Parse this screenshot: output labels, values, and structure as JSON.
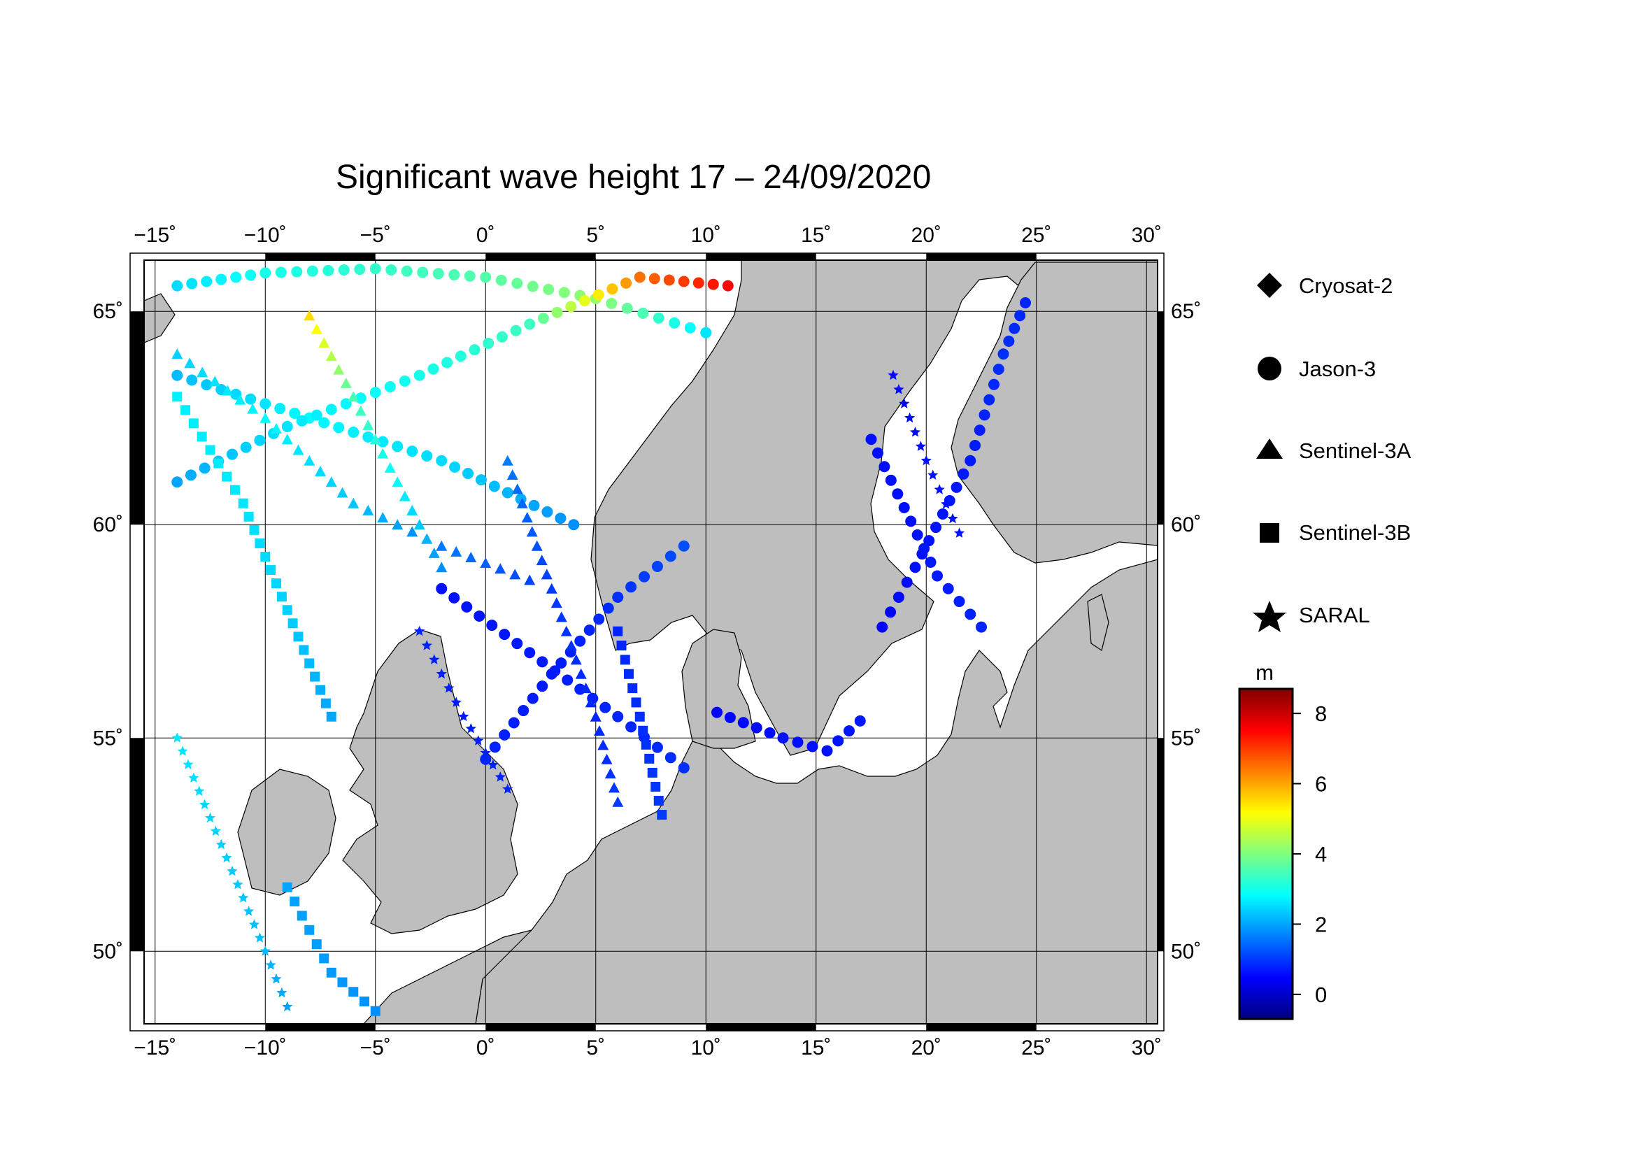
{
  "title": "Significant wave height 17 – 24/09/2020",
  "map": {
    "lon_range": [
      -15.5,
      30.5
    ],
    "lat_range": [
      48.3,
      66.2
    ],
    "lon_ticks": [
      {
        "value": -15,
        "label": "−15˚"
      },
      {
        "value": -10,
        "label": "−10˚"
      },
      {
        "value": -5,
        "label": "−5˚"
      },
      {
        "value": 0,
        "label": "0˚"
      },
      {
        "value": 5,
        "label": "5˚"
      },
      {
        "value": 10,
        "label": "10˚"
      },
      {
        "value": 15,
        "label": "15˚"
      },
      {
        "value": 20,
        "label": "20˚"
      },
      {
        "value": 25,
        "label": "25˚"
      },
      {
        "value": 30,
        "label": "30˚"
      }
    ],
    "lat_ticks": [
      {
        "value": 50,
        "label": "50˚"
      },
      {
        "value": 55,
        "label": "55˚"
      },
      {
        "value": 60,
        "label": "60˚"
      },
      {
        "value": 65,
        "label": "65˚"
      }
    ],
    "land_color": "#bebebe",
    "sea_color": "#ffffff"
  },
  "legend": {
    "items": [
      {
        "name": "Cryosat-2",
        "shape": "diamond"
      },
      {
        "name": "Jason-3",
        "shape": "circle"
      },
      {
        "name": "Sentinel-3A",
        "shape": "triangle"
      },
      {
        "name": "Sentinel-3B",
        "shape": "square"
      },
      {
        "name": "SARAL",
        "shape": "star"
      }
    ]
  },
  "colorbar": {
    "unit": "m",
    "min": -0.7,
    "max": 8.7,
    "ticks": [
      {
        "value": 0,
        "label": "0"
      },
      {
        "value": 2,
        "label": "2"
      },
      {
        "value": 4,
        "label": "4"
      },
      {
        "value": 6,
        "label": "6"
      },
      {
        "value": 8,
        "label": "8"
      }
    ],
    "colors": [
      "#00007f",
      "#0000ff",
      "#007fff",
      "#00ffff",
      "#7fff7f",
      "#ffff00",
      "#ff7f00",
      "#ff0000",
      "#7f0000"
    ]
  },
  "chart_data": {
    "type": "scatter",
    "x_axis": "longitude",
    "y_axis": "latitude",
    "color_value": "significant wave height (m)",
    "tracks": [
      {
        "satellite": "Jason-3",
        "shape": "circle",
        "points": [
          [
            -14,
            65.6,
            2.5
          ],
          [
            -10,
            65.9,
            3.0
          ],
          [
            -5,
            66.0,
            3.3
          ],
          [
            0,
            65.8,
            3.6
          ],
          [
            5,
            65.3,
            4.2
          ],
          [
            10,
            64.5,
            2.6
          ]
        ]
      },
      {
        "satellite": "Jason-3",
        "shape": "circle",
        "points": [
          [
            -14,
            63.5,
            2.2
          ],
          [
            -8,
            62.5,
            2.8
          ],
          [
            -2,
            61.5,
            2.5
          ],
          [
            4,
            60,
            1.8
          ]
        ]
      },
      {
        "satellite": "Jason-3",
        "shape": "circle",
        "points": [
          [
            -14,
            61,
            2.0
          ],
          [
            -9,
            62.3,
            2.6
          ],
          [
            -3,
            63.5,
            3.0
          ],
          [
            2,
            64.7,
            3.4
          ],
          [
            7,
            65.8,
            6.5
          ],
          [
            11,
            65.6,
            7.5
          ]
        ]
      },
      {
        "satellite": "Jason-3",
        "shape": "circle",
        "points": [
          [
            -2,
            58.5,
            0.6
          ],
          [
            2,
            57,
            0.7
          ],
          [
            6,
            55.5,
            0.8
          ],
          [
            9,
            54.3,
            0.9
          ]
        ]
      },
      {
        "satellite": "Jason-3",
        "shape": "circle",
        "points": [
          [
            0,
            54.5,
            0.8
          ],
          [
            3,
            56.5,
            0.7
          ],
          [
            6,
            58.3,
            0.9
          ],
          [
            9,
            59.5,
            1.2
          ]
        ]
      },
      {
        "satellite": "Jason-3",
        "shape": "circle",
        "points": [
          [
            10.5,
            55.6,
            0.5
          ],
          [
            13.5,
            55,
            0.6
          ],
          [
            15.5,
            54.7,
            0.6
          ],
          [
            17,
            55.4,
            0.7
          ]
        ]
      },
      {
        "satellite": "Jason-3",
        "shape": "circle",
        "points": [
          [
            18,
            57.6,
            0.5
          ],
          [
            19.5,
            59,
            0.6
          ],
          [
            22,
            61.5,
            0.7
          ],
          [
            23.5,
            64,
            0.9
          ],
          [
            24.5,
            65.2,
            0.8
          ]
        ]
      },
      {
        "satellite": "Jason-3",
        "shape": "circle",
        "points": [
          [
            17.5,
            62,
            0.6
          ],
          [
            19,
            60.4,
            0.6
          ],
          [
            20.5,
            58.8,
            0.7
          ],
          [
            22.5,
            57.6,
            0.8
          ]
        ]
      },
      {
        "satellite": "Sentinel-3A",
        "shape": "triangle",
        "points": [
          [
            -14,
            64,
            2.4
          ],
          [
            -10,
            62.5,
            2.8
          ],
          [
            -6,
            60.5,
            2.3
          ],
          [
            -2,
            59.5,
            1.6
          ],
          [
            2,
            58.7,
            1.1
          ]
        ]
      },
      {
        "satellite": "Sentinel-3A",
        "shape": "triangle",
        "points": [
          [
            1,
            61.5,
            1.6
          ],
          [
            3,
            58.5,
            1.0
          ],
          [
            5,
            55.5,
            0.8
          ],
          [
            6,
            53.5,
            1.0
          ]
        ]
      },
      {
        "satellite": "Sentinel-3A",
        "shape": "triangle",
        "points": [
          [
            -8,
            64.9,
            5.5
          ],
          [
            -6,
            63,
            3.5
          ],
          [
            -4,
            61,
            2.8
          ],
          [
            -2,
            59,
            1.8
          ]
        ]
      },
      {
        "satellite": "Sentinel-3B",
        "shape": "square",
        "points": [
          [
            -14,
            63,
            2.7
          ],
          [
            -11,
            60.5,
            2.6
          ],
          [
            -9,
            58,
            2.4
          ],
          [
            -7,
            55.5,
            2.0
          ]
        ]
      },
      {
        "satellite": "Sentinel-3B",
        "shape": "square",
        "points": [
          [
            6,
            57.5,
            0.8
          ],
          [
            7,
            55.5,
            0.9
          ],
          [
            8,
            53.2,
            1.0
          ]
        ]
      },
      {
        "satellite": "Sentinel-3B",
        "shape": "square",
        "points": [
          [
            -9,
            51.5,
            2.0
          ],
          [
            -7,
            49.5,
            1.9
          ],
          [
            -5,
            48.6,
            1.8
          ]
        ]
      },
      {
        "satellite": "SARAL",
        "shape": "star",
        "points": [
          [
            -14,
            55,
            2.6
          ],
          [
            -12,
            52.5,
            2.4
          ],
          [
            -10,
            50,
            2.2
          ],
          [
            -9,
            48.7,
            2.0
          ]
        ]
      },
      {
        "satellite": "SARAL",
        "shape": "star",
        "points": [
          [
            -3,
            57.5,
            0.8
          ],
          [
            -1,
            55.5,
            0.7
          ],
          [
            1,
            53.8,
            0.8
          ]
        ]
      },
      {
        "satellite": "SARAL",
        "shape": "star",
        "points": [
          [
            18.5,
            63.5,
            0.5
          ],
          [
            20,
            61.5,
            0.6
          ],
          [
            21.5,
            59.8,
            0.6
          ]
        ]
      }
    ]
  }
}
